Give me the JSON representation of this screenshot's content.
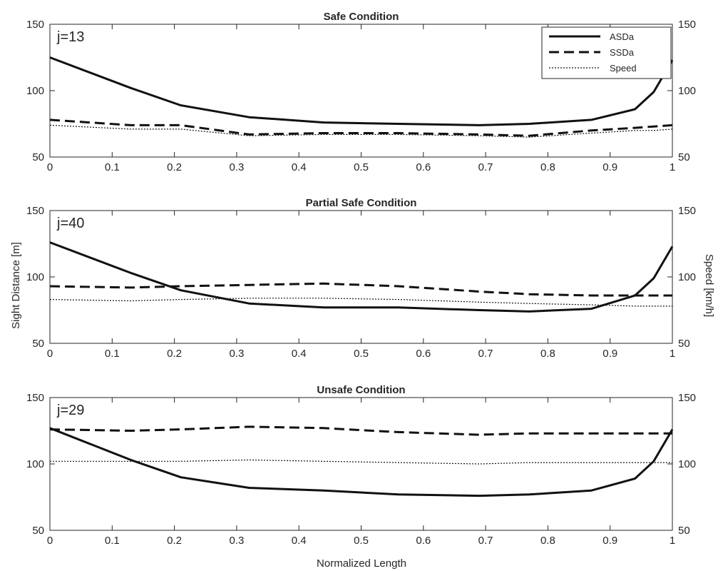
{
  "figure": {
    "ylabel_left": "Sight Distance [m]",
    "ylabel_right": "Speed [km/h]",
    "xlabel": "Normalized Length"
  },
  "chart_data": [
    {
      "type": "line",
      "title": "Safe Condition",
      "annotation": "j=13",
      "xlim": [
        0,
        1
      ],
      "ylim": [
        50,
        150
      ],
      "xticks": [
        0,
        0.1,
        0.2,
        0.3,
        0.4,
        0.5,
        0.6,
        0.7,
        0.8,
        0.9,
        1
      ],
      "yticks": [
        50,
        100,
        150
      ],
      "y2lim": [
        50,
        150
      ],
      "y2ticks": [
        50,
        100,
        150
      ],
      "grid": false,
      "legend": "top-right",
      "series": [
        {
          "name": "ASDa",
          "style": "solid",
          "x": [
            0,
            0.13,
            0.21,
            0.32,
            0.44,
            0.56,
            0.69,
            0.77,
            0.87,
            0.94,
            0.97,
            1.0
          ],
          "y": [
            125,
            102,
            89,
            80,
            76,
            75,
            74,
            75,
            78,
            86,
            99,
            123
          ]
        },
        {
          "name": "SSDa",
          "style": "dashed",
          "x": [
            0,
            0.13,
            0.21,
            0.32,
            0.44,
            0.56,
            0.69,
            0.77,
            0.87,
            0.94,
            0.97,
            1.0
          ],
          "y": [
            78,
            74,
            74,
            67,
            68,
            68,
            67,
            66,
            70,
            72,
            73,
            74
          ]
        },
        {
          "name": "Speed",
          "style": "dotted",
          "x": [
            0,
            0.13,
            0.21,
            0.32,
            0.44,
            0.56,
            0.69,
            0.77,
            0.87,
            0.94,
            0.97,
            1.0
          ],
          "y": [
            74,
            71,
            71,
            66,
            67,
            67,
            66,
            65,
            68,
            70,
            70,
            71
          ]
        }
      ]
    },
    {
      "type": "line",
      "title": "Partial Safe Condition",
      "annotation": "j=40",
      "xlim": [
        0,
        1
      ],
      "ylim": [
        50,
        150
      ],
      "xticks": [
        0,
        0.1,
        0.2,
        0.3,
        0.4,
        0.5,
        0.6,
        0.7,
        0.8,
        0.9,
        1
      ],
      "yticks": [
        50,
        100,
        150
      ],
      "y2lim": [
        50,
        150
      ],
      "y2ticks": [
        50,
        100,
        150
      ],
      "grid": false,
      "series": [
        {
          "name": "ASDa",
          "style": "solid",
          "x": [
            0,
            0.13,
            0.21,
            0.32,
            0.44,
            0.56,
            0.69,
            0.77,
            0.87,
            0.94,
            0.97,
            1.0
          ],
          "y": [
            126,
            103,
            90,
            80,
            77,
            77,
            75,
            74,
            76,
            86,
            99,
            123
          ]
        },
        {
          "name": "SSDa",
          "style": "dashed",
          "x": [
            0,
            0.13,
            0.21,
            0.32,
            0.44,
            0.56,
            0.69,
            0.77,
            0.87,
            0.94,
            0.97,
            1.0
          ],
          "y": [
            93,
            92,
            93,
            94,
            95,
            93,
            89,
            87,
            86,
            86,
            86,
            86
          ]
        },
        {
          "name": "Speed",
          "style": "dotted",
          "x": [
            0,
            0.13,
            0.21,
            0.32,
            0.44,
            0.56,
            0.69,
            0.77,
            0.87,
            0.94,
            0.97,
            1.0
          ],
          "y": [
            83,
            82,
            83,
            84,
            84,
            83,
            81,
            80,
            79,
            78,
            78,
            78
          ]
        }
      ]
    },
    {
      "type": "line",
      "title": "Unsafe Condition",
      "annotation": "j=29",
      "xlim": [
        0,
        1
      ],
      "ylim": [
        50,
        150
      ],
      "xticks": [
        0,
        0.1,
        0.2,
        0.3,
        0.4,
        0.5,
        0.6,
        0.7,
        0.8,
        0.9,
        1
      ],
      "yticks": [
        50,
        100,
        150
      ],
      "y2lim": [
        50,
        150
      ],
      "y2ticks": [
        50,
        100,
        150
      ],
      "grid": false,
      "series": [
        {
          "name": "ASDa",
          "style": "solid",
          "x": [
            0,
            0.13,
            0.21,
            0.32,
            0.44,
            0.56,
            0.69,
            0.77,
            0.87,
            0.94,
            0.97,
            1.0
          ],
          "y": [
            127,
            103,
            90,
            82,
            80,
            77,
            76,
            77,
            80,
            89,
            102,
            126
          ]
        },
        {
          "name": "SSDa",
          "style": "dashed",
          "x": [
            0,
            0.13,
            0.21,
            0.32,
            0.44,
            0.56,
            0.69,
            0.77,
            0.87,
            0.94,
            0.97,
            1.0
          ],
          "y": [
            126,
            125,
            126,
            128,
            127,
            124,
            122,
            123,
            123,
            123,
            123,
            123
          ]
        },
        {
          "name": "Speed",
          "style": "dotted",
          "x": [
            0,
            0.13,
            0.21,
            0.32,
            0.44,
            0.56,
            0.69,
            0.77,
            0.87,
            0.94,
            0.97,
            1.0
          ],
          "y": [
            102,
            102,
            102,
            103,
            102,
            101,
            100,
            101,
            101,
            101,
            101,
            101
          ]
        }
      ]
    }
  ]
}
